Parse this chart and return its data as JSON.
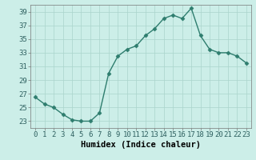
{
  "x": [
    0,
    1,
    2,
    3,
    4,
    5,
    6,
    7,
    8,
    9,
    10,
    11,
    12,
    13,
    14,
    15,
    16,
    17,
    18,
    19,
    20,
    21,
    22,
    23
  ],
  "y": [
    26.5,
    25.5,
    25.0,
    24.0,
    23.2,
    23.0,
    23.0,
    24.2,
    30.0,
    32.5,
    33.5,
    34.0,
    35.5,
    36.5,
    38.0,
    38.5,
    38.0,
    39.5,
    35.5,
    33.5,
    33.0,
    33.0,
    32.5,
    31.5
  ],
  "line_color": "#2e7d6e",
  "marker": "D",
  "marker_size": 2.5,
  "bg_color": "#cceee8",
  "grid_color": "#aad4cc",
  "xlabel": "Humidex (Indice chaleur)",
  "xlim": [
    -0.5,
    23.5
  ],
  "ylim": [
    22,
    40
  ],
  "yticks": [
    23,
    25,
    27,
    29,
    31,
    33,
    35,
    37,
    39
  ],
  "xtick_labels": [
    "0",
    "1",
    "2",
    "3",
    "4",
    "5",
    "6",
    "7",
    "8",
    "9",
    "10",
    "11",
    "12",
    "13",
    "14",
    "15",
    "16",
    "17",
    "18",
    "19",
    "20",
    "21",
    "22",
    "23"
  ],
  "xlabel_fontsize": 7.5,
  "tick_fontsize": 6.5
}
